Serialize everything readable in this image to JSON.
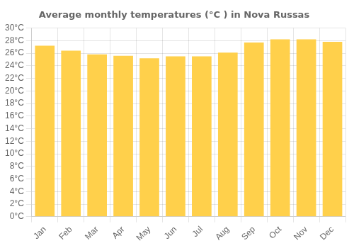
{
  "chart_data": {
    "type": "bar",
    "title": "Average monthly temperatures (°C ) in Nova Russas",
    "categories": [
      "Jan",
      "Feb",
      "Mar",
      "Apr",
      "May",
      "Jun",
      "Jul",
      "Aug",
      "Sep",
      "Oct",
      "Nov",
      "Dec"
    ],
    "values": [
      27.2,
      26.4,
      25.8,
      25.6,
      25.2,
      25.5,
      25.5,
      26.1,
      27.7,
      28.2,
      28.2,
      27.8
    ],
    "color": "#FFD04B",
    "ylim": [
      0,
      30
    ],
    "yticks": [
      {
        "value": 0,
        "label": "0°C"
      },
      {
        "value": 2,
        "label": "2°C"
      },
      {
        "value": 4,
        "label": "4°C"
      },
      {
        "value": 6,
        "label": "6°C"
      },
      {
        "value": 8,
        "label": "8°C"
      },
      {
        "value": 10,
        "label": "10°C"
      },
      {
        "value": 12,
        "label": "12°C"
      },
      {
        "value": 14,
        "label": "14°C"
      },
      {
        "value": 16,
        "label": "16°C"
      },
      {
        "value": 18,
        "label": "18°C"
      },
      {
        "value": 20,
        "label": "20°C"
      },
      {
        "value": 22,
        "label": "22°C"
      },
      {
        "value": 24,
        "label": "24°C"
      },
      {
        "value": 26,
        "label": "26°C"
      },
      {
        "value": 28,
        "label": "28°C"
      },
      {
        "value": 30,
        "label": "30°C"
      }
    ],
    "grid": true
  }
}
